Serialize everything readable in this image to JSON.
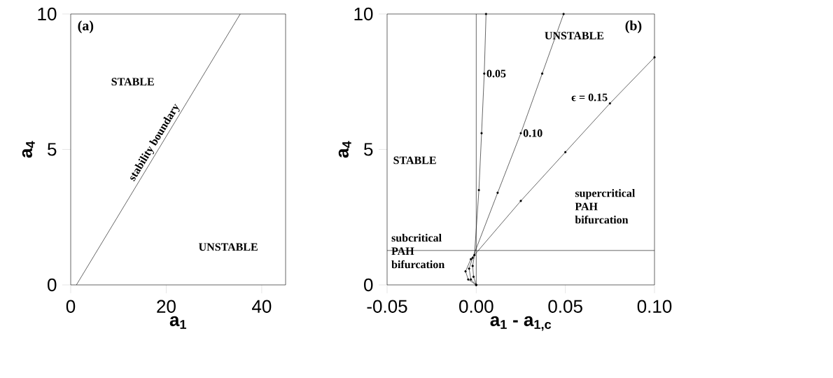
{
  "chart_data": [
    {
      "type": "line",
      "title": "(a)",
      "xlabel": "a$_{1}$",
      "ylabel": "a$_{4}$",
      "xlim": [
        0,
        45
      ],
      "ylim": [
        0,
        10
      ],
      "xticks": [
        0,
        20,
        40
      ],
      "yticks": [
        0,
        5,
        10
      ],
      "series": [
        {
          "color": "#000000",
          "x": [
            1.2,
            35.5
          ],
          "values": [
            0,
            10
          ]
        }
      ],
      "annotations": [
        "STABLE",
        "UNSTABLE",
        {
          "text": "stability boundary",
          "x": 19,
          "y": 5.1
        }
      ]
    },
    {
      "type": "line",
      "title": "(b)",
      "xlabel": "a$_{1}$ - a$_{1,c}$",
      "ylabel": "a$_{4}$",
      "xlim": [
        -0.05,
        0.1
      ],
      "ylim": [
        0,
        10
      ],
      "xticks": [
        {
          "value": -0.05,
          "label": "-0.05"
        },
        {
          "value": 0,
          "label": "0.00"
        },
        {
          "value": 0.05,
          "label": "0.05"
        },
        {
          "value": 0.1,
          "label": "0.10"
        }
      ],
      "yticks": [
        0,
        5,
        10
      ],
      "marker": "circle",
      "series": [
        {
          "name": "0.05",
          "color": "#000000",
          "x": [
            0,
            -0.0015,
            -0.002,
            -0.001,
            0.0015,
            0.003,
            0.0045,
            0.0055
          ],
          "values": [
            0,
            0.3,
            0.7,
            1.1,
            3.5,
            5.6,
            7.8,
            10
          ]
        },
        {
          "name": "0.10",
          "color": "#000000",
          "x": [
            0,
            -0.003,
            -0.004,
            -0.002,
            0.012,
            0.025,
            0.037,
            0.049
          ],
          "values": [
            0,
            0.2,
            0.6,
            1.0,
            3.4,
            5.6,
            7.8,
            10
          ]
        },
        {
          "name": "ϵ = 0.15",
          "color": "#000000",
          "x": [
            0,
            -0.0045,
            -0.006,
            -0.003,
            0.025,
            0.05,
            0.075,
            0.1
          ],
          "values": [
            0,
            0.2,
            0.5,
            0.95,
            3.1,
            4.9,
            6.7,
            8.4
          ]
        }
      ],
      "ref_lines": [
        {
          "axis": "x",
          "value": 0,
          "color": "#000000"
        },
        {
          "axis": "y",
          "value": 1.27,
          "color": "#000000"
        }
      ],
      "annotations": [
        "UNSTABLE",
        "STABLE",
        "supercritical PAH bifurcation",
        "subcritical PAH bifurcation"
      ]
    }
  ]
}
